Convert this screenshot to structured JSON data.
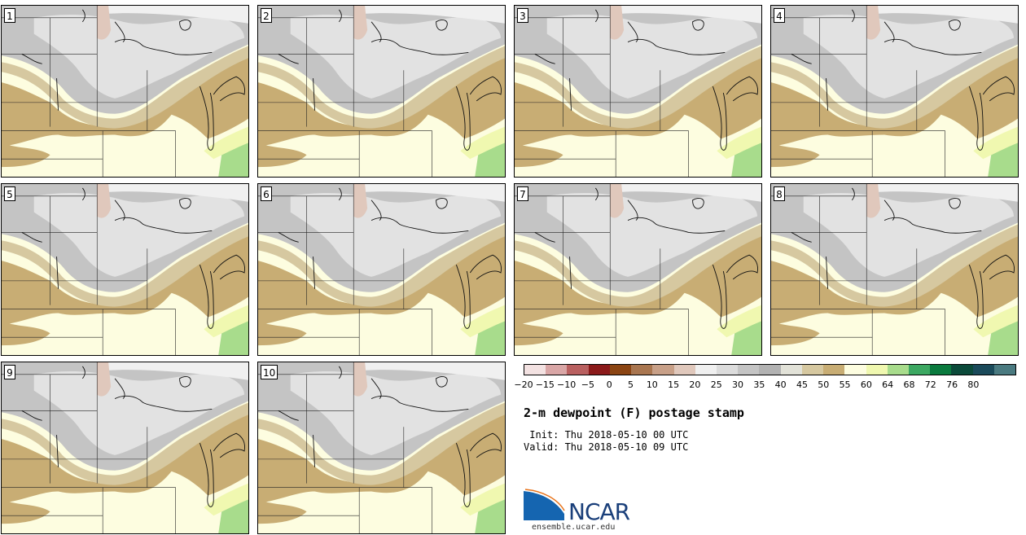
{
  "panels": [
    {
      "label": "1"
    },
    {
      "label": "2"
    },
    {
      "label": "3"
    },
    {
      "label": "4"
    },
    {
      "label": "5"
    },
    {
      "label": "6"
    },
    {
      "label": "7"
    },
    {
      "label": "8"
    },
    {
      "label": "9"
    },
    {
      "label": "10"
    }
  ],
  "colorbar": {
    "ticks": [
      "−20",
      "−15",
      "−10",
      "−5",
      "0",
      "5",
      "10",
      "15",
      "20",
      "25",
      "30",
      "35",
      "40",
      "45",
      "50",
      "55",
      "60",
      "64",
      "68",
      "72",
      "76",
      "80"
    ],
    "colors": [
      "#f3e2e2",
      "#d9a6a6",
      "#b96060",
      "#8b1a1a",
      "#8b4513",
      "#a97650",
      "#c8a088",
      "#e0c8bc",
      "#f0f0f0",
      "#dcdcdc",
      "#c4c4c4",
      "#b2b2b2",
      "#e2e2d8",
      "#d6c8a0",
      "#c8ad74",
      "#fdfde0",
      "#f0f8b0",
      "#a8dc8c",
      "#3ca862",
      "#0a7a3e",
      "#0b4a3a",
      "#1a4a5a",
      "#4a7a80"
    ]
  },
  "title": "2-m dewpoint (F) postage stamp",
  "init": " Init: Thu 2018-05-10 00 UTC",
  "valid": "Valid: Thu 2018-05-10 09 UTC",
  "logo": {
    "text": "NCAR",
    "site": "ensemble.ucar.edu"
  }
}
